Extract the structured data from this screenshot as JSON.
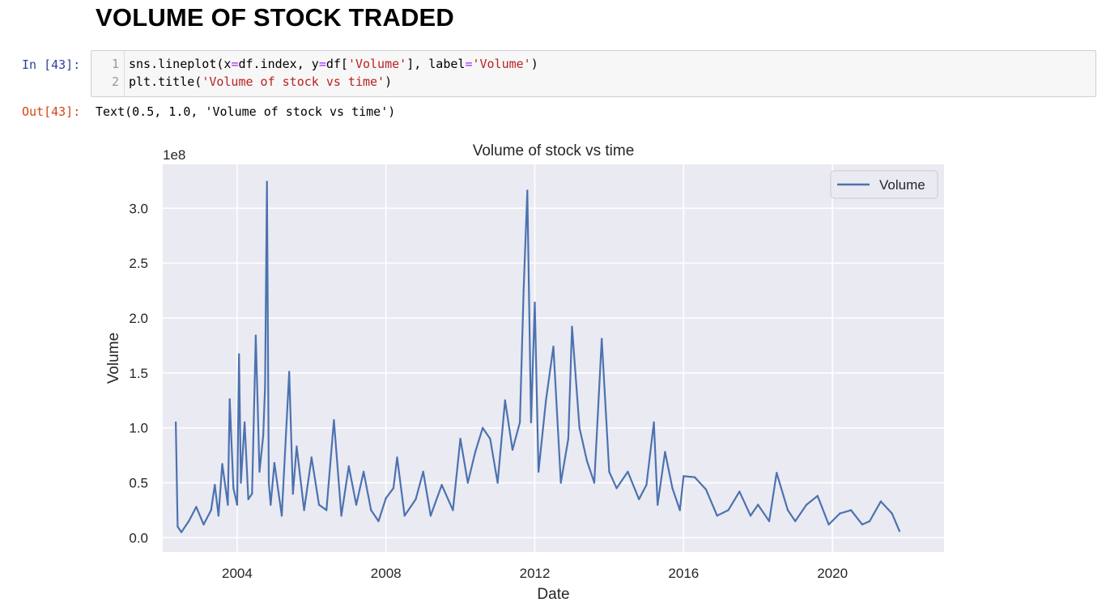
{
  "heading": "VOLUME OF STOCK TRADED",
  "cell": {
    "in_prompt": "In [43]:",
    "out_prompt": "Out[43]:",
    "line_numbers": [
      "1",
      "2"
    ],
    "code": [
      {
        "p1": "sns.lineplot(x",
        "op1": "=",
        "p2": "df.index, y",
        "op2": "=",
        "p3": "df[",
        "s1": "'Volume'",
        "p4": "], label",
        "op3": "=",
        "s2": "'Volume'",
        "p5": ")"
      },
      {
        "p1": "plt.title(",
        "s1": "'Volume of stock vs time'",
        "p2": ")"
      }
    ],
    "output_text": "Text(0.5, 1.0, 'Volume of stock vs time')"
  },
  "colors": {
    "line": "#4c72b0",
    "plot_bg": "#eaeaf2",
    "grid": "#ffffff"
  },
  "chart_data": {
    "type": "line",
    "title": "Volume of stock vs time",
    "xlabel": "Date",
    "ylabel": "Volume",
    "offset_label": "1e8",
    "grid": true,
    "legend_position": "top-right",
    "xlim": [
      2002.0,
      2023.0
    ],
    "ylim": [
      -0.13,
      3.4
    ],
    "x_ticks": [
      2004,
      2008,
      2012,
      2016,
      2020
    ],
    "x_tick_labels": [
      "2004",
      "2008",
      "2012",
      "2016",
      "2020"
    ],
    "y_ticks": [
      0.0,
      0.5,
      1.0,
      1.5,
      2.0,
      2.5,
      3.0
    ],
    "y_tick_labels": [
      "0.0",
      "0.5",
      "1.0",
      "1.5",
      "2.0",
      "2.5",
      "3.0"
    ],
    "series": [
      {
        "name": "Volume",
        "x": [
          2002.35,
          2002.4,
          2002.5,
          2002.7,
          2002.9,
          2003.1,
          2003.3,
          2003.4,
          2003.5,
          2003.6,
          2003.75,
          2003.8,
          2003.9,
          2004.0,
          2004.05,
          2004.1,
          2004.2,
          2004.3,
          2004.4,
          2004.5,
          2004.6,
          2004.7,
          2004.75,
          2004.8,
          2004.85,
          2004.9,
          2005.0,
          2005.2,
          2005.4,
          2005.5,
          2005.6,
          2005.8,
          2006.0,
          2006.2,
          2006.4,
          2006.6,
          2006.8,
          2007.0,
          2007.2,
          2007.4,
          2007.6,
          2007.8,
          2008.0,
          2008.2,
          2008.3,
          2008.5,
          2008.8,
          2009.0,
          2009.2,
          2009.5,
          2009.8,
          2010.0,
          2010.2,
          2010.4,
          2010.6,
          2010.8,
          2011.0,
          2011.2,
          2011.4,
          2011.6,
          2011.7,
          2011.8,
          2011.9,
          2012.0,
          2012.1,
          2012.3,
          2012.5,
          2012.7,
          2012.9,
          2013.0,
          2013.2,
          2013.4,
          2013.6,
          2013.8,
          2014.0,
          2014.2,
          2014.5,
          2014.8,
          2015.0,
          2015.2,
          2015.3,
          2015.5,
          2015.7,
          2015.9,
          2016.0,
          2016.3,
          2016.6,
          2016.9,
          2017.2,
          2017.5,
          2017.8,
          2018.0,
          2018.3,
          2018.5,
          2018.8,
          2019.0,
          2019.3,
          2019.6,
          2019.9,
          2020.2,
          2020.5,
          2020.8,
          2021.0,
          2021.3,
          2021.6,
          2021.8
        ],
        "y": [
          1.05,
          0.1,
          0.05,
          0.15,
          0.28,
          0.12,
          0.25,
          0.48,
          0.2,
          0.67,
          0.3,
          1.26,
          0.45,
          0.3,
          1.67,
          0.5,
          1.05,
          0.35,
          0.4,
          1.84,
          0.6,
          0.93,
          1.38,
          3.24,
          0.5,
          0.3,
          0.68,
          0.2,
          1.51,
          0.4,
          0.83,
          0.25,
          0.73,
          0.3,
          0.25,
          1.07,
          0.2,
          0.65,
          0.3,
          0.6,
          0.25,
          0.15,
          0.36,
          0.45,
          0.73,
          0.2,
          0.35,
          0.6,
          0.2,
          0.48,
          0.25,
          0.9,
          0.5,
          0.78,
          1.0,
          0.9,
          0.5,
          1.25,
          0.8,
          1.05,
          2.25,
          3.16,
          1.05,
          2.14,
          0.6,
          1.25,
          1.74,
          0.5,
          0.9,
          1.92,
          1.0,
          0.7,
          0.5,
          1.81,
          0.6,
          0.45,
          0.6,
          0.35,
          0.48,
          1.05,
          0.3,
          0.78,
          0.45,
          0.25,
          0.56,
          0.55,
          0.44,
          0.2,
          0.25,
          0.42,
          0.2,
          0.3,
          0.15,
          0.59,
          0.25,
          0.15,
          0.3,
          0.38,
          0.12,
          0.22,
          0.25,
          0.12,
          0.15,
          0.33,
          0.22,
          0.06
        ]
      }
    ]
  }
}
